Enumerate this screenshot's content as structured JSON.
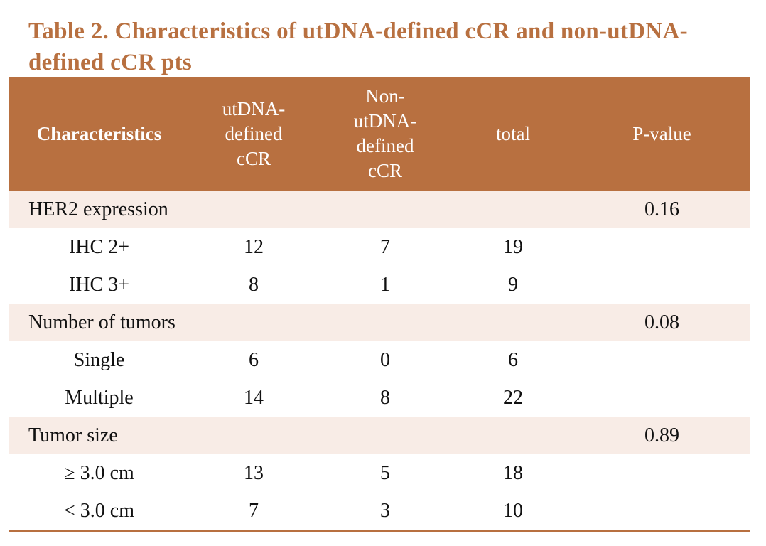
{
  "title": "Table 2. Characteristics of utDNA-defined cCR  and non-utDNA-defined cCR  pts",
  "header": {
    "characteristics": "Characteristics",
    "utdna": [
      "utDNA-",
      "defined",
      "cCR"
    ],
    "non_utdna": [
      "Non-",
      "utDNA-",
      "defined",
      "cCR"
    ],
    "total": "total",
    "p_value": "P-value"
  },
  "rows": [
    {
      "type": "group",
      "label": "HER2 expression",
      "a": "",
      "b": "",
      "total": "",
      "p": "0.16"
    },
    {
      "type": "item",
      "label": "IHC 2+",
      "a": "12",
      "b": "7",
      "total": "19",
      "p": ""
    },
    {
      "type": "item",
      "label": "IHC 3+",
      "a": "8",
      "b": "1",
      "total": "9",
      "p": ""
    },
    {
      "type": "group",
      "label": "Number of tumors",
      "a": "",
      "b": "",
      "total": "",
      "p": "0.08"
    },
    {
      "type": "item",
      "label": "Single",
      "a": "6",
      "b": "0",
      "total": "6",
      "p": ""
    },
    {
      "type": "item",
      "label": "Multiple",
      "a": "14",
      "b": "8",
      "total": "22",
      "p": ""
    },
    {
      "type": "group",
      "label": "Tumor size",
      "a": "",
      "b": "",
      "total": "",
      "p": "0.89"
    },
    {
      "type": "item",
      "label": "≥ 3.0 cm",
      "a": "13",
      "b": "5",
      "total": "18",
      "p": ""
    },
    {
      "type": "item",
      "label": "< 3.0 cm",
      "a": "7",
      "b": "3",
      "total": "10",
      "p": ""
    }
  ]
}
